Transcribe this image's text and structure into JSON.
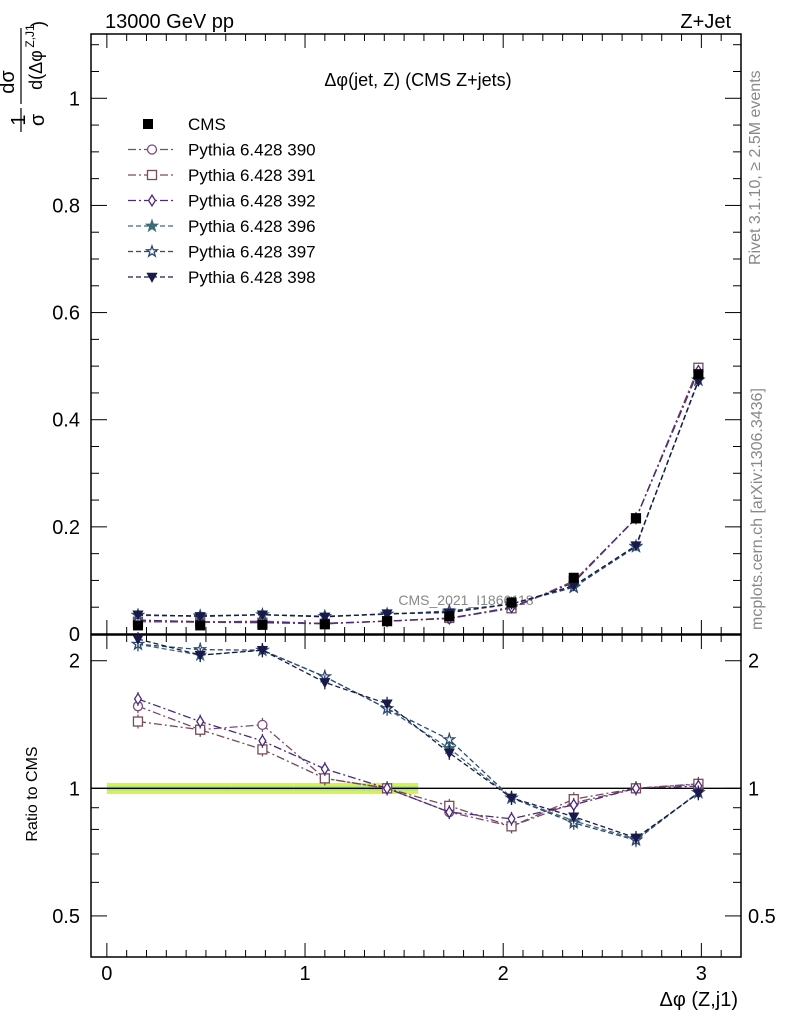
{
  "header": {
    "left": "13000 GeV pp",
    "right": "Z+Jet"
  },
  "side": {
    "rivet": "Rivet 3.1.10, ≥ 2.5M events",
    "mcplots": "mcplots.cern.ch [arXiv:1306.3436]"
  },
  "watermark": "CMS_2021_I1866118",
  "chart_data": {
    "type": "line",
    "title": "Δφ(jet, Z) (CMS Z+jets)",
    "xlabel": "Δφ (Z,j1)",
    "ylabel_main": "1/σ dσ/d(Δφ^{Z,J1})",
    "ylabel_ratio": "Ratio to CMS",
    "xlim": [
      -0.08,
      3.2
    ],
    "ylim_main": [
      0,
      1.12
    ],
    "ylim_ratio": [
      0.4,
      2.3
    ],
    "ratio_scale": "log",
    "x_ticks": [
      "0",
      "1",
      "2",
      "3"
    ],
    "y_ticks_main": [
      "0",
      "0.2",
      "0.4",
      "0.6",
      "0.8",
      "1"
    ],
    "y_ticks_ratio": [
      "0.5",
      "1",
      "2"
    ],
    "x": [
      0.157,
      0.471,
      0.785,
      1.1,
      1.414,
      1.728,
      2.042,
      2.356,
      2.67,
      2.985
    ],
    "data": {
      "name": "CMS",
      "color": "#000000",
      "values": [
        0.016,
        0.016,
        0.017,
        0.018,
        0.024,
        0.033,
        0.059,
        0.105,
        0.216,
        0.485
      ]
    },
    "series": [
      {
        "name": "Pythia 6.428 390",
        "color": "#7b4a7b",
        "marker": "circle-open",
        "dash": "8,3,2,3",
        "values": [
          0.025,
          0.022,
          0.024,
          0.019,
          0.024,
          0.029,
          0.048,
          0.097,
          0.216,
          0.496
        ]
      },
      {
        "name": "Pythia 6.428 391",
        "color": "#7a4a5a",
        "marker": "square-open",
        "dash": "8,3,2,3",
        "values": [
          0.023,
          0.022,
          0.021,
          0.019,
          0.024,
          0.03,
          0.048,
          0.099,
          0.216,
          0.497
        ]
      },
      {
        "name": "Pythia 6.428 392",
        "color": "#4a2a7a",
        "marker": "diamond-open",
        "dash": "8,3,2,3",
        "values": [
          0.026,
          0.023,
          0.022,
          0.02,
          0.024,
          0.029,
          0.05,
          0.096,
          0.216,
          0.491
        ]
      },
      {
        "name": "Pythia 6.428 396",
        "color": "#3d6b7a",
        "marker": "star-filled",
        "dash": "5,3",
        "values": [
          0.035,
          0.033,
          0.036,
          0.033,
          0.037,
          0.041,
          0.056,
          0.088,
          0.164,
          0.474
        ]
      },
      {
        "name": "Pythia 6.428 397",
        "color": "#2d4a72",
        "marker": "star-open",
        "dash": "5,3",
        "values": [
          0.035,
          0.034,
          0.036,
          0.033,
          0.037,
          0.043,
          0.056,
          0.087,
          0.163,
          0.474
        ]
      },
      {
        "name": "Pythia 6.428 398",
        "color": "#1a1a4a",
        "marker": "triangle-down-filled",
        "dash": "5,3",
        "values": [
          0.036,
          0.033,
          0.036,
          0.032,
          0.038,
          0.04,
          0.056,
          0.09,
          0.165,
          0.472
        ]
      }
    ]
  }
}
